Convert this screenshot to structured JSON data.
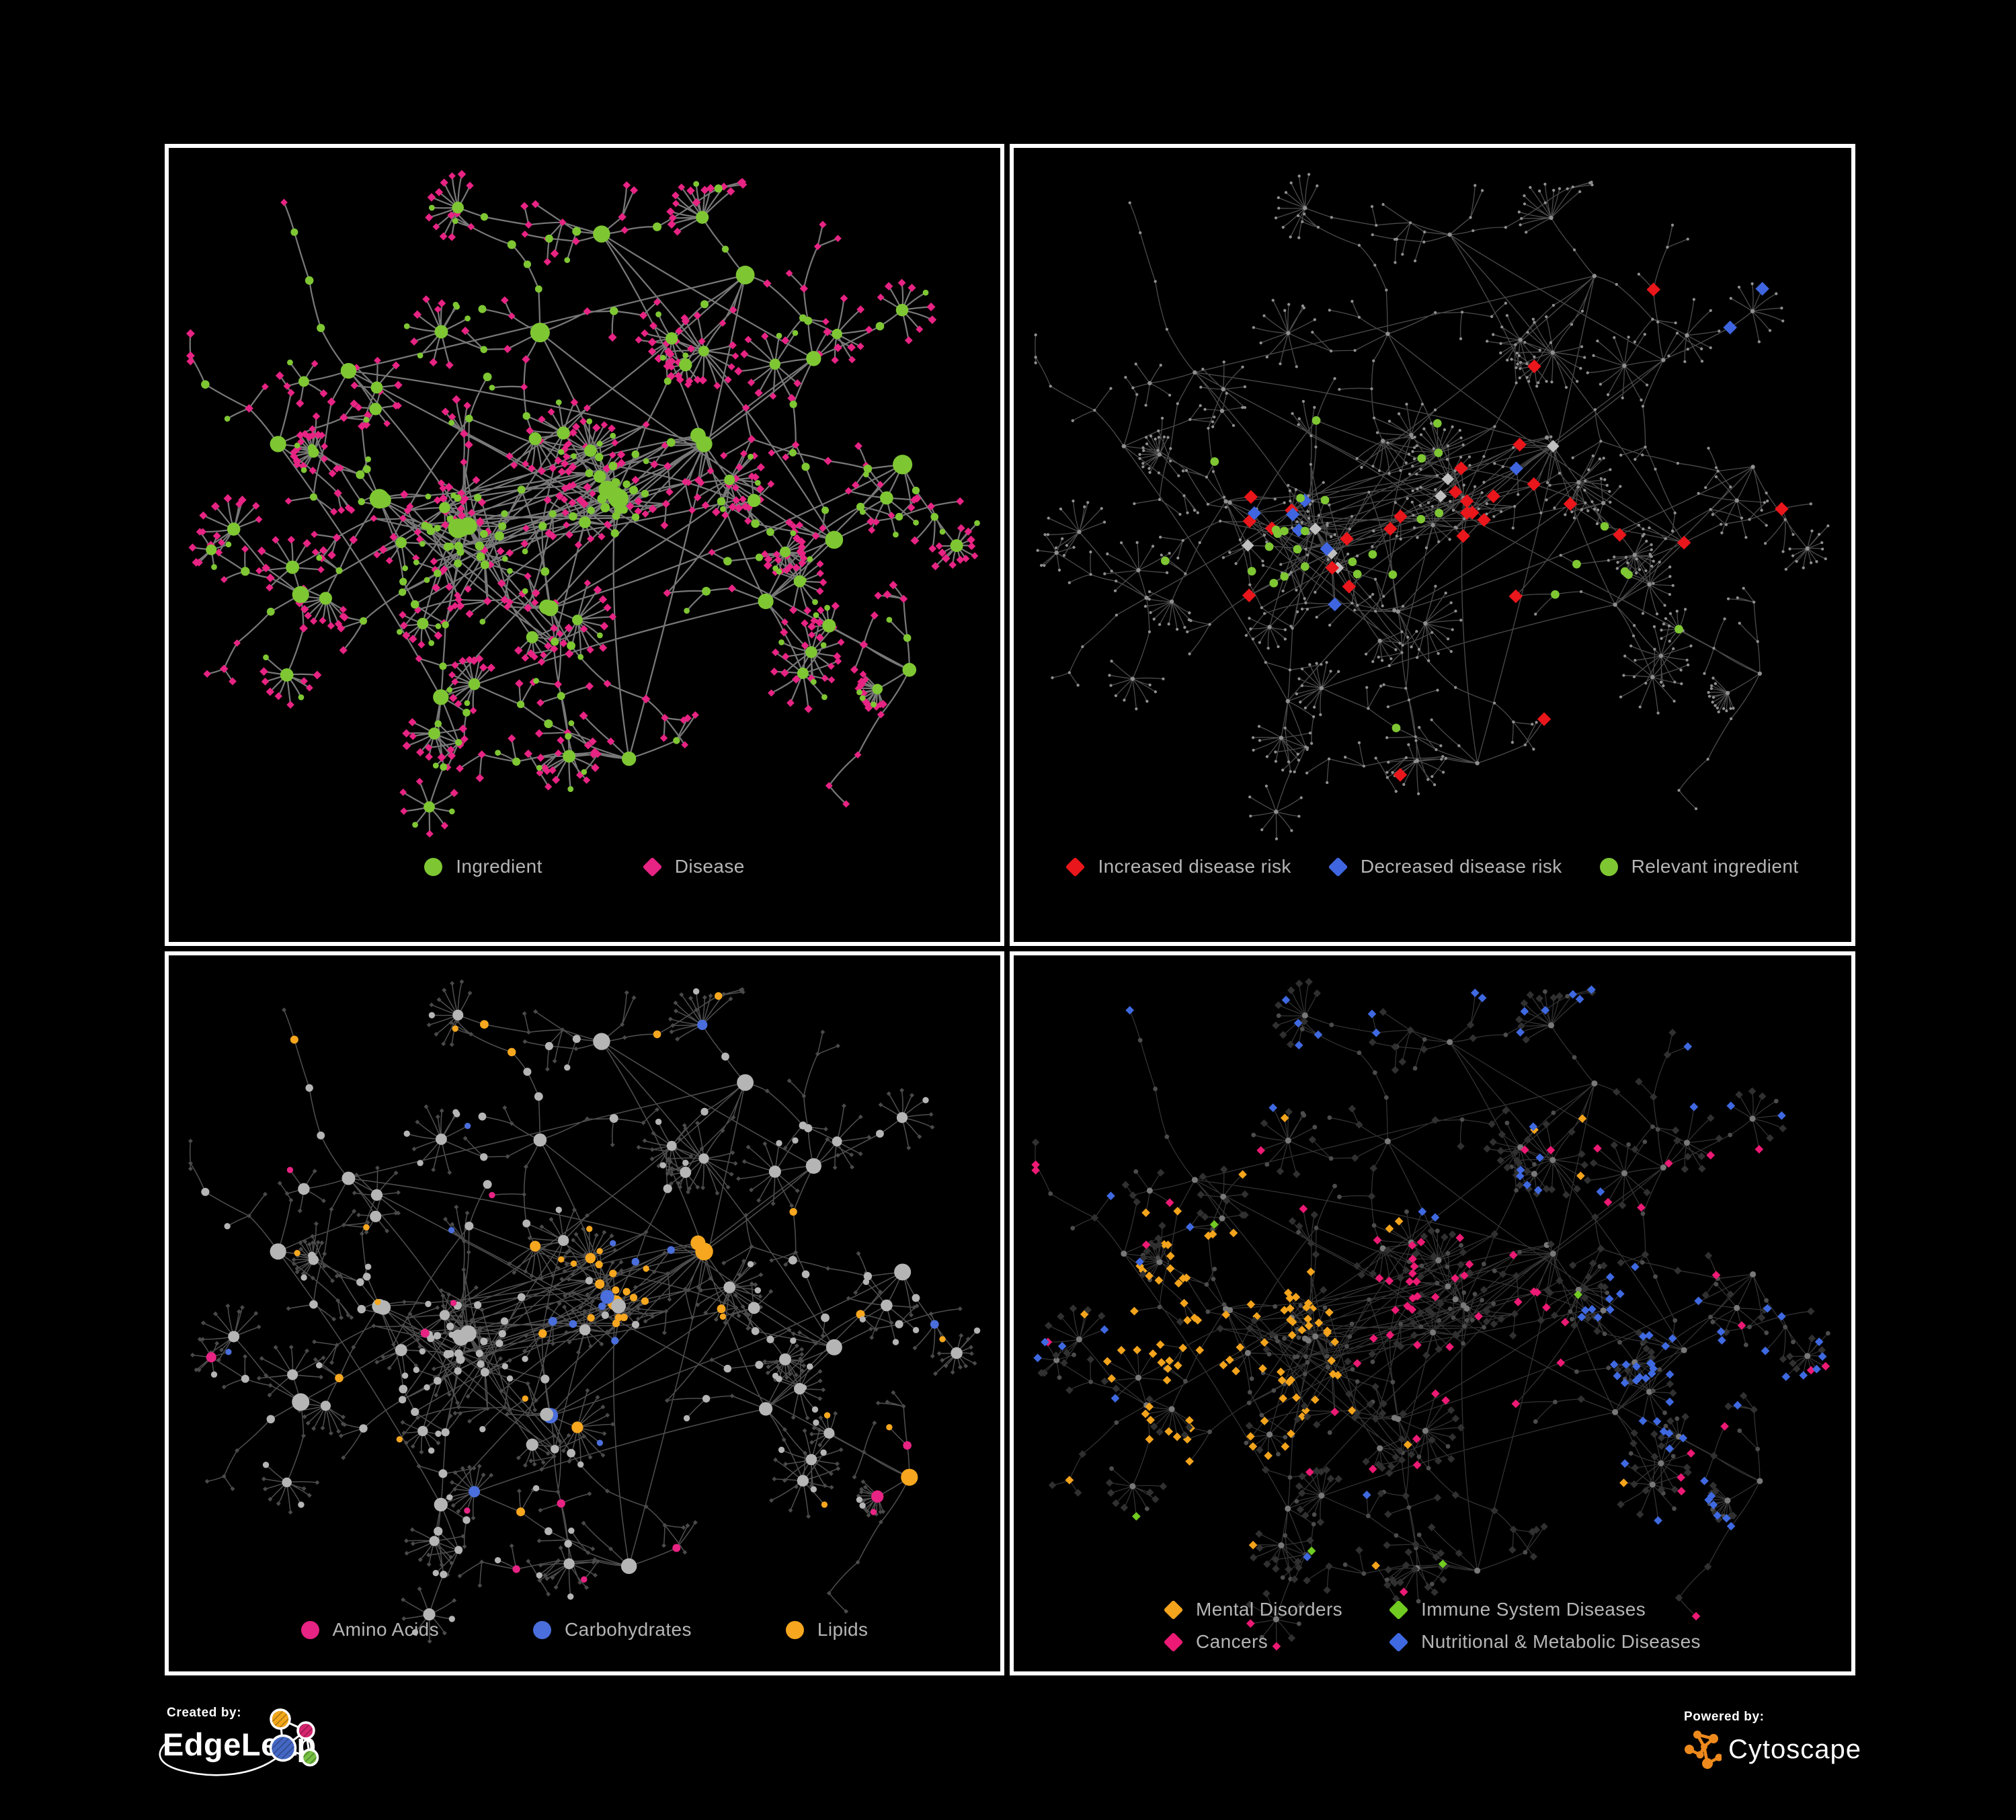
{
  "poster": {
    "background": "#000000",
    "panel_border": "#FFFFFF",
    "legend_text_color": "#B5B5B5"
  },
  "panels": [
    {
      "id": "ingredient-disease",
      "legend": [
        {
          "label": "Ingredient",
          "shape": "circle",
          "color": "#7EC733"
        },
        {
          "label": "Disease",
          "shape": "diamond",
          "color": "#E72383"
        }
      ]
    },
    {
      "id": "disease-risk",
      "legend": [
        {
          "label": "Increased disease risk",
          "shape": "diamond",
          "color": "#E9161B"
        },
        {
          "label": "Decreased disease risk",
          "shape": "diamond",
          "color": "#3F66E0"
        },
        {
          "label": "Relevant ingredient",
          "shape": "circle",
          "color": "#7EC733"
        }
      ]
    },
    {
      "id": "nutrient-classes",
      "legend": [
        {
          "label": "Amino Acids",
          "shape": "circle",
          "color": "#E72383"
        },
        {
          "label": "Carbohydrates",
          "shape": "circle",
          "color": "#4A6EDB"
        },
        {
          "label": "Lipids",
          "shape": "circle",
          "color": "#F6A71F"
        }
      ]
    },
    {
      "id": "disease-categories",
      "legend": [
        {
          "label": "Mental Disorders",
          "shape": "diamond",
          "color": "#F3A41C"
        },
        {
          "label": "Immune System Diseases",
          "shape": "diamond",
          "color": "#71CB21"
        },
        {
          "label": "Cancers",
          "shape": "diamond",
          "color": "#EC1A74"
        },
        {
          "label": "Nutritional & Metabolic Diseases",
          "shape": "diamond",
          "color": "#3F69E1"
        }
      ]
    }
  ],
  "network_style": {
    "p1": {
      "edge": "#7E7E7E"
    },
    "p2": {
      "edge": "#575757",
      "base_dot": "#8F8F8F",
      "neutral_diamond": "#BFBFBF"
    },
    "p3": {
      "edge": "#9C9C9C",
      "base_circle": "#B5B5B5",
      "base_diamond": "#4A4A4A"
    },
    "p4": {
      "edge": "#979797",
      "base_diamond": "#303030",
      "base_circle": "#4C4C4C",
      "hub_circle": "#787878"
    }
  },
  "footer": {
    "created_by_label": "Created by:",
    "created_by_name": "EdgeLeap",
    "powered_by_label": "Powered by:",
    "powered_by_name": "Cytoscape"
  }
}
